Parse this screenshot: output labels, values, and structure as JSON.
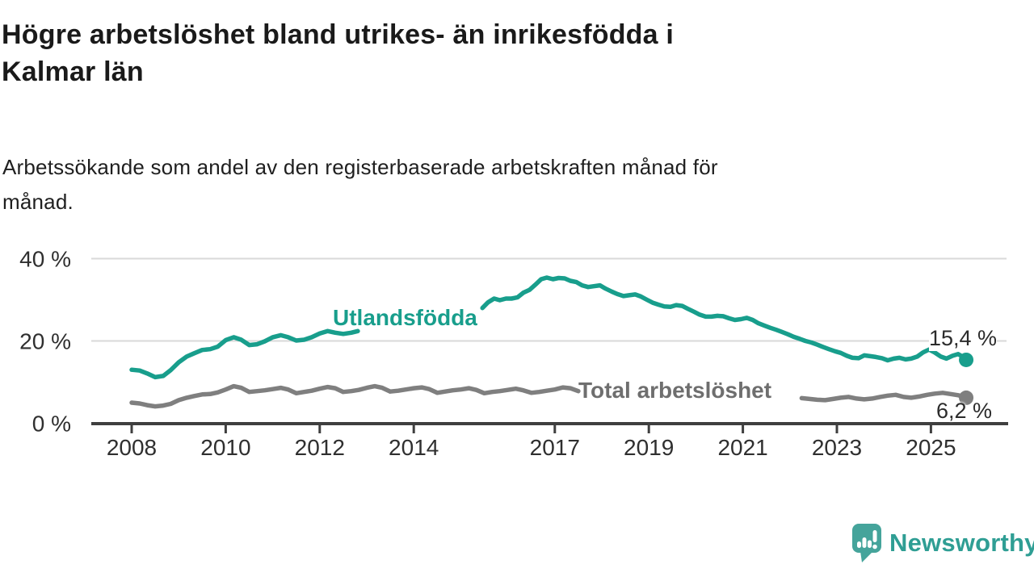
{
  "header": {
    "title": "Högre arbetslöshet bland utrikes- än inrikesfödda i\nKalmar län",
    "subtitle": "Arbetssökande som andel av den registerbaserade arbetskraften månad för\nmånad."
  },
  "branding": {
    "name": "Newsworthy",
    "logo_icon": "newsworthy-bubble-bar-chart-icon",
    "color": "#2f9e94"
  },
  "chart_data": {
    "type": "line",
    "title": "Högre arbetslöshet bland utrikes- än inrikesfödda i Kalmar län",
    "unit": "% av registerbaserad arbetskraft",
    "grid": true,
    "x_axis": {
      "range": [
        2007.15,
        2026.0
      ],
      "ticks": [
        {
          "v": 2008,
          "label": "2008"
        },
        {
          "v": 2010,
          "label": "2010"
        },
        {
          "v": 2012,
          "label": "2012"
        },
        {
          "v": 2014,
          "label": "2014"
        },
        {
          "v": 2017,
          "label": "2017"
        },
        {
          "v": 2019,
          "label": "2019"
        },
        {
          "v": 2021,
          "label": "2021"
        },
        {
          "v": 2023,
          "label": "2023"
        },
        {
          "v": 2025,
          "label": "2025"
        }
      ]
    },
    "y_axis": {
      "range": [
        0,
        42
      ],
      "ticks": [
        {
          "v": 0,
          "label": "0 %"
        },
        {
          "v": 20,
          "label": "20 %"
        },
        {
          "v": 40,
          "label": "40 %"
        }
      ]
    },
    "series": [
      {
        "name": "Utlandsfödda",
        "color": "#189e8c",
        "label_color": "#189e8c",
        "end_label": "15,4 %",
        "end_value": 15.4,
        "segments": [
          [
            [
              2008.0,
              13.0
            ],
            [
              2008.17,
              12.8
            ],
            [
              2008.33,
              12.1
            ],
            [
              2008.5,
              11.2
            ],
            [
              2008.67,
              11.5
            ],
            [
              2008.83,
              12.9
            ],
            [
              2009.0,
              14.8
            ],
            [
              2009.17,
              16.2
            ],
            [
              2009.33,
              17.0
            ],
            [
              2009.5,
              17.8
            ],
            [
              2009.67,
              18.0
            ],
            [
              2009.83,
              18.6
            ],
            [
              2010.0,
              20.2
            ],
            [
              2010.17,
              20.9
            ],
            [
              2010.33,
              20.3
            ],
            [
              2010.5,
              19.0
            ],
            [
              2010.67,
              19.2
            ],
            [
              2010.83,
              19.9
            ],
            [
              2011.0,
              20.9
            ],
            [
              2011.17,
              21.4
            ],
            [
              2011.33,
              20.9
            ],
            [
              2011.5,
              20.1
            ],
            [
              2011.67,
              20.3
            ],
            [
              2011.83,
              20.9
            ],
            [
              2012.0,
              21.8
            ],
            [
              2012.17,
              22.4
            ],
            [
              2012.33,
              22.0
            ],
            [
              2012.5,
              21.7
            ],
            [
              2012.67,
              22.0
            ],
            [
              2012.81,
              22.4
            ]
          ],
          [
            [
              2015.46,
              28.0
            ],
            [
              2015.58,
              29.4
            ],
            [
              2015.71,
              30.3
            ],
            [
              2015.83,
              29.9
            ],
            [
              2015.96,
              30.3
            ],
            [
              2016.08,
              30.3
            ],
            [
              2016.21,
              30.6
            ],
            [
              2016.33,
              31.7
            ],
            [
              2016.46,
              32.4
            ],
            [
              2016.58,
              33.6
            ],
            [
              2016.71,
              35.0
            ],
            [
              2016.83,
              35.4
            ],
            [
              2016.96,
              35.0
            ],
            [
              2017.08,
              35.3
            ],
            [
              2017.21,
              35.2
            ],
            [
              2017.33,
              34.6
            ],
            [
              2017.46,
              34.3
            ],
            [
              2017.58,
              33.5
            ],
            [
              2017.71,
              33.1
            ],
            [
              2017.83,
              33.3
            ],
            [
              2017.96,
              33.5
            ],
            [
              2018.08,
              32.7
            ],
            [
              2018.21,
              32.0
            ],
            [
              2018.33,
              31.4
            ],
            [
              2018.46,
              30.9
            ],
            [
              2018.58,
              31.1
            ],
            [
              2018.71,
              31.3
            ],
            [
              2018.83,
              30.8
            ],
            [
              2018.96,
              30.0
            ],
            [
              2019.08,
              29.3
            ],
            [
              2019.21,
              28.8
            ],
            [
              2019.33,
              28.4
            ],
            [
              2019.46,
              28.3
            ],
            [
              2019.58,
              28.7
            ],
            [
              2019.71,
              28.5
            ],
            [
              2019.83,
              27.8
            ],
            [
              2019.96,
              27.1
            ],
            [
              2020.08,
              26.4
            ],
            [
              2020.21,
              25.9
            ],
            [
              2020.33,
              25.9
            ],
            [
              2020.46,
              26.1
            ],
            [
              2020.58,
              26.0
            ],
            [
              2020.71,
              25.5
            ],
            [
              2020.83,
              25.1
            ],
            [
              2020.96,
              25.3
            ],
            [
              2021.08,
              25.6
            ],
            [
              2021.21,
              25.1
            ],
            [
              2021.33,
              24.3
            ],
            [
              2021.46,
              23.7
            ],
            [
              2021.58,
              23.2
            ],
            [
              2021.71,
              22.7
            ],
            [
              2021.83,
              22.2
            ],
            [
              2021.96,
              21.6
            ],
            [
              2022.08,
              21.0
            ],
            [
              2022.21,
              20.5
            ],
            [
              2022.33,
              20.0
            ],
            [
              2022.46,
              19.6
            ],
            [
              2022.58,
              19.1
            ],
            [
              2022.71,
              18.5
            ],
            [
              2022.83,
              18.0
            ],
            [
              2022.96,
              17.5
            ],
            [
              2023.08,
              17.1
            ],
            [
              2023.21,
              16.4
            ],
            [
              2023.33,
              15.9
            ],
            [
              2023.46,
              15.8
            ],
            [
              2023.58,
              16.5
            ],
            [
              2023.71,
              16.3
            ],
            [
              2023.83,
              16.1
            ],
            [
              2023.96,
              15.8
            ],
            [
              2024.08,
              15.3
            ],
            [
              2024.21,
              15.7
            ],
            [
              2024.33,
              15.9
            ],
            [
              2024.46,
              15.5
            ],
            [
              2024.58,
              15.7
            ],
            [
              2024.71,
              16.2
            ],
            [
              2024.83,
              17.2
            ],
            [
              2024.96,
              17.9
            ],
            [
              2025.08,
              17.2
            ],
            [
              2025.21,
              16.2
            ],
            [
              2025.33,
              15.7
            ],
            [
              2025.46,
              16.4
            ],
            [
              2025.58,
              16.8
            ],
            [
              2025.67,
              16.2
            ],
            [
              2025.75,
              15.4
            ]
          ]
        ]
      },
      {
        "name": "Total arbetslöshet",
        "color": "#7f7f7f",
        "label_color": "#6e6e6e",
        "end_label": "6,2 %",
        "end_value": 6.2,
        "segments": [
          [
            [
              2008.0,
              5.0
            ],
            [
              2008.17,
              4.8
            ],
            [
              2008.33,
              4.4
            ],
            [
              2008.5,
              4.1
            ],
            [
              2008.67,
              4.3
            ],
            [
              2008.83,
              4.7
            ],
            [
              2009.0,
              5.6
            ],
            [
              2009.17,
              6.2
            ],
            [
              2009.33,
              6.6
            ],
            [
              2009.5,
              7.0
            ],
            [
              2009.67,
              7.1
            ],
            [
              2009.83,
              7.5
            ],
            [
              2010.0,
              8.2
            ],
            [
              2010.17,
              9.0
            ],
            [
              2010.33,
              8.6
            ],
            [
              2010.5,
              7.6
            ],
            [
              2010.67,
              7.8
            ],
            [
              2010.83,
              8.0
            ],
            [
              2011.0,
              8.3
            ],
            [
              2011.17,
              8.6
            ],
            [
              2011.33,
              8.2
            ],
            [
              2011.5,
              7.3
            ],
            [
              2011.67,
              7.6
            ],
            [
              2011.83,
              7.9
            ],
            [
              2012.0,
              8.4
            ],
            [
              2012.17,
              8.8
            ],
            [
              2012.33,
              8.5
            ],
            [
              2012.5,
              7.6
            ],
            [
              2012.67,
              7.8
            ],
            [
              2012.83,
              8.1
            ],
            [
              2013.0,
              8.6
            ],
            [
              2013.17,
              9.0
            ],
            [
              2013.33,
              8.6
            ],
            [
              2013.5,
              7.7
            ],
            [
              2013.67,
              7.9
            ],
            [
              2013.83,
              8.2
            ],
            [
              2014.0,
              8.5
            ],
            [
              2014.17,
              8.7
            ],
            [
              2014.33,
              8.3
            ],
            [
              2014.5,
              7.4
            ],
            [
              2014.67,
              7.7
            ],
            [
              2014.83,
              8.0
            ],
            [
              2015.0,
              8.2
            ],
            [
              2015.17,
              8.5
            ],
            [
              2015.33,
              8.1
            ],
            [
              2015.5,
              7.3
            ],
            [
              2015.67,
              7.6
            ],
            [
              2015.83,
              7.8
            ],
            [
              2016.0,
              8.1
            ],
            [
              2016.17,
              8.4
            ],
            [
              2016.33,
              8.0
            ],
            [
              2016.5,
              7.4
            ],
            [
              2016.67,
              7.6
            ],
            [
              2016.83,
              7.9
            ],
            [
              2017.0,
              8.2
            ],
            [
              2017.17,
              8.7
            ],
            [
              2017.33,
              8.5
            ],
            [
              2017.5,
              7.8
            ]
          ],
          [
            [
              2022.25,
              6.1
            ],
            [
              2022.42,
              5.9
            ],
            [
              2022.58,
              5.7
            ],
            [
              2022.75,
              5.6
            ],
            [
              2022.92,
              5.9
            ],
            [
              2023.08,
              6.2
            ],
            [
              2023.25,
              6.4
            ],
            [
              2023.42,
              6.0
            ],
            [
              2023.58,
              5.8
            ],
            [
              2023.75,
              6.0
            ],
            [
              2023.92,
              6.4
            ],
            [
              2024.08,
              6.7
            ],
            [
              2024.25,
              6.9
            ],
            [
              2024.42,
              6.4
            ],
            [
              2024.58,
              6.2
            ],
            [
              2024.75,
              6.5
            ],
            [
              2024.92,
              6.9
            ],
            [
              2025.08,
              7.2
            ],
            [
              2025.25,
              7.4
            ],
            [
              2025.42,
              7.1
            ],
            [
              2025.58,
              6.8
            ],
            [
              2025.75,
              6.2
            ]
          ]
        ]
      }
    ]
  }
}
